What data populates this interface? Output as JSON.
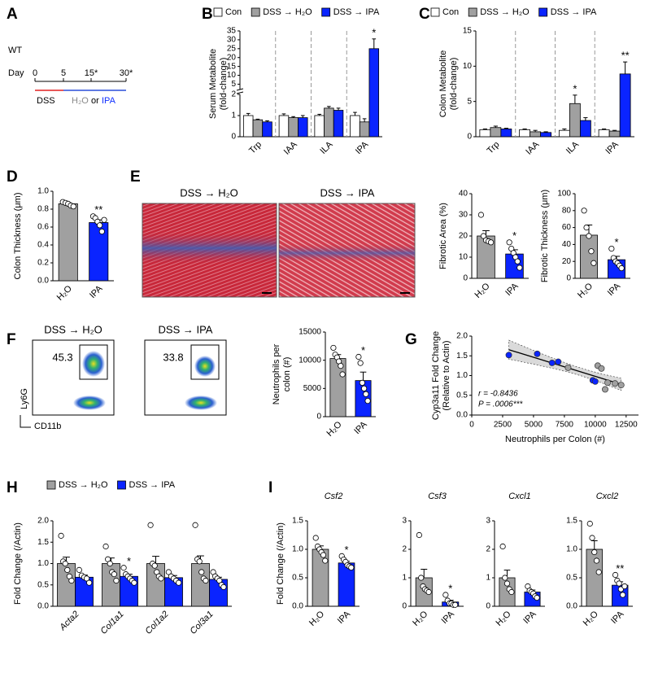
{
  "panels": [
    "A",
    "B",
    "C",
    "D",
    "E",
    "F",
    "G",
    "H",
    "I"
  ],
  "timeline": {
    "strain": "WT",
    "day_label": "Day",
    "days": [
      "0",
      "5",
      "15*",
      "30*"
    ],
    "induction": "DSS",
    "treatments": [
      "H₂O",
      "IPA"
    ],
    "connector": "or"
  },
  "histology": {
    "titles": [
      "DSS → H₂O",
      "DSS → IPA"
    ]
  },
  "flow": {
    "titles": [
      "DSS → H₂O",
      "DSS → IPA"
    ],
    "gates": [
      45.3,
      33.8
    ],
    "ylabel": "Ly6G",
    "xlabel": "CD11b"
  },
  "chart_data": [
    {
      "type": "bar",
      "ylabel": [
        "Serum Metabolite",
        "(fold-change)"
      ],
      "categories": [
        "Trp",
        "IAA",
        "ILA",
        "IPA"
      ],
      "separators": true,
      "ylim": [
        0,
        35
      ],
      "ybreak": 2,
      "yticks": [
        0,
        1,
        2,
        5,
        10,
        15,
        20,
        25,
        30,
        35
      ],
      "series": [
        {
          "name": "Con",
          "color": "#ffffff",
          "values": [
            1.0,
            1.0,
            1.0,
            1.0
          ],
          "errors": [
            0.1,
            0.08,
            0.06,
            0.15
          ]
        },
        {
          "name": "DSS → H₂O",
          "color": "#a0a0a0",
          "values": [
            0.8,
            0.9,
            1.35,
            0.7
          ],
          "errors": [
            0.03,
            0.05,
            0.08,
            0.15
          ]
        },
        {
          "name": "DSS → IPA",
          "color": "#0a24ff",
          "values": [
            0.7,
            0.9,
            1.25,
            25
          ],
          "errors": [
            0.05,
            0.1,
            0.1,
            5.5
          ],
          "sig": [
            null,
            null,
            null,
            "*"
          ]
        }
      ]
    },
    {
      "type": "bar",
      "ylabel": [
        "Colon Metabolite",
        "(fold-change)"
      ],
      "categories": [
        "Trp",
        "IAA",
        "ILA",
        "IPA"
      ],
      "separators": true,
      "ylim": [
        0,
        15
      ],
      "yticks": [
        0,
        5,
        10,
        15
      ],
      "series": [
        {
          "name": "Con",
          "color": "#ffffff",
          "values": [
            1.0,
            1.0,
            0.9,
            1.0
          ],
          "errors": [
            0.1,
            0.1,
            0.2,
            0.1
          ]
        },
        {
          "name": "DSS → H₂O",
          "color": "#a0a0a0",
          "values": [
            1.3,
            0.7,
            4.7,
            0.8
          ],
          "errors": [
            0.2,
            0.2,
            1.2,
            0.1
          ],
          "sig": [
            null,
            null,
            "*",
            null
          ]
        },
        {
          "name": "DSS → IPA",
          "color": "#0a24ff",
          "values": [
            1.1,
            0.6,
            2.3,
            8.9
          ],
          "errors": [
            0.1,
            0.1,
            0.4,
            1.7
          ],
          "sig": [
            null,
            null,
            null,
            "**"
          ]
        }
      ]
    },
    {
      "type": "bar",
      "ylabel": "Colon Thickness (μm)",
      "categories": [
        "H₂O",
        "IPA"
      ],
      "colors": [
        "#a0a0a0",
        "#0a24ff"
      ],
      "values": [
        0.86,
        0.65
      ],
      "errors": [
        0.01,
        0.03
      ],
      "sig": [
        null,
        "**"
      ],
      "points": [
        [
          0.88,
          0.87,
          0.86,
          0.84,
          0.83
        ],
        [
          0.72,
          0.7,
          0.66,
          0.62,
          0.55,
          0.68
        ]
      ],
      "ylim": [
        0,
        1.0
      ],
      "yticks": [
        {
          "value": 0,
          "label": "0.0"
        },
        0.2,
        0.4,
        0.6,
        0.8,
        {
          "value": 1,
          "label": "1.0"
        }
      ]
    },
    {
      "type": "bar",
      "ylabel": "Fibrotic Area (%)",
      "categories": [
        "H₂O",
        "IPA"
      ],
      "colors": [
        "#a0a0a0",
        "#0a24ff"
      ],
      "values": [
        20,
        11.5
      ],
      "errors": [
        2.5,
        2
      ],
      "sig": [
        null,
        "*"
      ],
      "points": [
        [
          30,
          20,
          18,
          17.5,
          17
        ],
        [
          17,
          14,
          12,
          10,
          8,
          5
        ]
      ],
      "ylim": [
        0,
        40
      ],
      "yticks": [
        0,
        10,
        20,
        30,
        40
      ]
    },
    {
      "type": "bar",
      "ylabel": "Fibrotic Thickness (μm)",
      "categories": [
        "H₂O",
        "IPA"
      ],
      "colors": [
        "#a0a0a0",
        "#0a24ff"
      ],
      "values": [
        51,
        22
      ],
      "errors": [
        12,
        4
      ],
      "sig": [
        null,
        "*"
      ],
      "points": [
        [
          80,
          60,
          50,
          32,
          18
        ],
        [
          35,
          24,
          20,
          18,
          15,
          12
        ]
      ],
      "ylim": [
        0,
        100
      ],
      "yticks": [
        0,
        20,
        40,
        60,
        80,
        100
      ]
    },
    {
      "type": "bar",
      "ylabel": [
        "Neutrophils per",
        "colon (#)"
      ],
      "categories": [
        "H₂O",
        "IPA"
      ],
      "colors": [
        "#a0a0a0",
        "#0a24ff"
      ],
      "values": [
        10300,
        6400
      ],
      "errors": [
        700,
        1500
      ],
      "sig": [
        null,
        "*"
      ],
      "points": [
        [
          12200,
          11000,
          10500,
          9800,
          9000,
          7500
        ],
        [
          10600,
          9500,
          6000,
          5000,
          4000,
          2800
        ]
      ],
      "ylim": [
        0,
        15000
      ],
      "yticks": [
        0,
        5000,
        10000,
        15000
      ]
    },
    {
      "type": "scatter",
      "ylabel": [
        "Cyp3a11 Fold Change",
        "(Relative to Actin)"
      ],
      "xlabel": "Neutrophils per Colon (#)",
      "annotations": [
        "r = -0.8436",
        "P = .0006***"
      ],
      "xlim": [
        0,
        13500
      ],
      "xticks": [
        0,
        2500,
        5000,
        7500,
        10000,
        12500
      ],
      "ylim": [
        0,
        2
      ],
      "yticks": [
        {
          "value": 0,
          "label": "0.0"
        },
        0.5,
        {
          "value": 1,
          "label": "1.0"
        },
        1.5,
        {
          "value": 2,
          "label": "2.0"
        }
      ],
      "series": [
        {
          "color": "#0a24ff",
          "x": [
            3000,
            5300,
            6500,
            7000,
            9800,
            10000
          ],
          "y": [
            1.52,
            1.55,
            1.32,
            1.35,
            0.88,
            0.85
          ]
        },
        {
          "color": "#a0a0a0",
          "x": [
            7800,
            10200,
            10500,
            10800,
            11000,
            11600,
            12100
          ],
          "y": [
            1.2,
            1.25,
            1.18,
            0.65,
            0.82,
            0.8,
            0.76
          ]
        }
      ]
    },
    {
      "type": "bar",
      "ylabel": "Fold Change (/Actin)",
      "categories": [
        "Acta2",
        "Col1a1",
        "Col1a2",
        "Col3a1"
      ],
      "italic_categories": true,
      "ylim": [
        0,
        2.0
      ],
      "yticks": [
        {
          "value": 0,
          "label": "0.0"
        },
        0.5,
        {
          "value": 1,
          "label": "1.0"
        },
        1.5,
        {
          "value": 2,
          "label": "2.0"
        }
      ],
      "series": [
        {
          "name": "DSS → H₂O",
          "color": "#a0a0a0",
          "values": [
            1.0,
            1.0,
            1.0,
            1.0
          ],
          "errors": [
            0.15,
            0.13,
            0.17,
            0.18
          ],
          "points": [
            [
              1.65,
              1.05,
              1.0,
              0.85,
              0.7,
              0.6
            ],
            [
              1.4,
              1.1,
              1.0,
              0.8,
              0.75,
              0.6
            ],
            [
              1.9,
              1.0,
              0.95,
              0.8,
              0.7,
              0.65
            ],
            [
              1.9,
              1.1,
              1.05,
              0.8,
              0.65,
              0.6
            ]
          ]
        },
        {
          "name": "DSS → IPA",
          "color": "#0a24ff",
          "values": [
            0.68,
            0.7,
            0.67,
            0.63
          ],
          "errors": [
            0.05,
            0.05,
            0.05,
            0.05
          ],
          "sig": [
            null,
            "*",
            null,
            null
          ],
          "points": [
            [
              0.85,
              0.72,
              0.68,
              0.65,
              0.55
            ],
            [
              0.9,
              0.75,
              0.7,
              0.65,
              0.6,
              0.55
            ],
            [
              0.8,
              0.7,
              0.65,
              0.6,
              0.55
            ],
            [
              0.8,
              0.7,
              0.65,
              0.6,
              0.5,
              0.45
            ]
          ]
        }
      ]
    },
    {
      "type": "bar",
      "title": "Csf2",
      "ylabel": "Fold Change (/Actin)",
      "categories": [
        "H₂O",
        "IPA"
      ],
      "colors": [
        "#a0a0a0",
        "#0a24ff"
      ],
      "values": [
        1.0,
        0.76
      ],
      "errors": [
        0.06,
        0.03
      ],
      "sig": [
        null,
        "*"
      ],
      "points": [
        [
          1.2,
          1.05,
          1.0,
          0.95,
          0.9,
          0.8
        ],
        [
          0.88,
          0.82,
          0.78,
          0.72,
          0.7,
          0.68
        ]
      ],
      "ylim": [
        0,
        1.5
      ],
      "yticks": [
        {
          "value": 0,
          "label": "0.0"
        },
        0.5,
        {
          "value": 1,
          "label": "1.0"
        },
        1.5
      ]
    },
    {
      "type": "bar",
      "title": "Csf3",
      "categories": [
        "H₂O",
        "IPA"
      ],
      "colors": [
        "#a0a0a0",
        "#0a24ff"
      ],
      "values": [
        1.0,
        0.15
      ],
      "errors": [
        0.3,
        0.06
      ],
      "sig": [
        null,
        "*"
      ],
      "points": [
        [
          2.5,
          1.0,
          0.7,
          0.6,
          0.55,
          0.5
        ],
        [
          0.4,
          0.2,
          0.1,
          0.1,
          0.05,
          0.05
        ]
      ],
      "ylim": [
        0,
        3
      ],
      "yticks": [
        0,
        1,
        2,
        3
      ]
    },
    {
      "type": "bar",
      "title": "Cxcl1",
      "categories": [
        "H₂O",
        "IPA"
      ],
      "colors": [
        "#a0a0a0",
        "#0a24ff"
      ],
      "values": [
        1.0,
        0.5
      ],
      "errors": [
        0.27,
        0.07
      ],
      "points": [
        [
          2.1,
          1.0,
          0.8,
          0.6,
          0.5
        ],
        [
          0.7,
          0.55,
          0.5,
          0.45,
          0.35,
          0.3
        ]
      ],
      "ylim": [
        0,
        3
      ],
      "yticks": [
        0,
        1,
        2,
        3
      ]
    },
    {
      "type": "bar",
      "title": "Cxcl2",
      "categories": [
        "H₂O",
        "IPA"
      ],
      "colors": [
        "#a0a0a0",
        "#0a24ff"
      ],
      "values": [
        1.0,
        0.37
      ],
      "errors": [
        0.15,
        0.06
      ],
      "sig": [
        null,
        "**"
      ],
      "points": [
        [
          1.45,
          1.2,
          0.95,
          0.8,
          0.6
        ],
        [
          0.55,
          0.45,
          0.4,
          0.3,
          0.2,
          0.35
        ]
      ],
      "ylim": [
        0,
        1.5
      ],
      "yticks": [
        {
          "value": 0,
          "label": "0.0"
        },
        0.5,
        {
          "value": 1,
          "label": "1.0"
        },
        1.5
      ]
    }
  ]
}
